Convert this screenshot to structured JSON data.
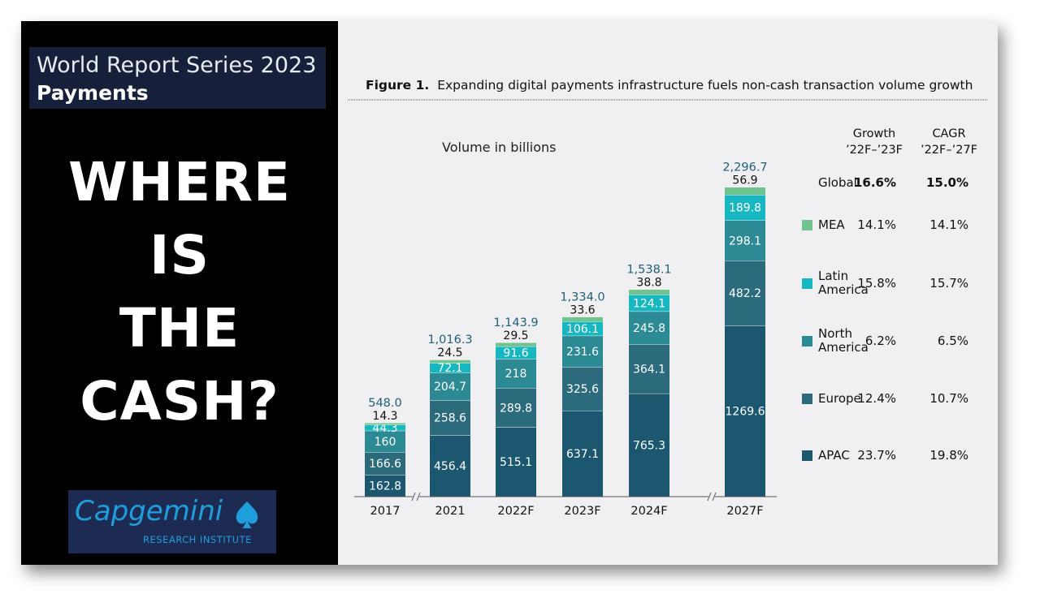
{
  "left_panel": {
    "series_title": "World Report Series 2023",
    "series_subtitle": "Payments",
    "headline_lines": [
      "WHERE",
      "IS",
      "THE",
      "CASH?"
    ],
    "logo": {
      "wordmark": "Capgemini",
      "subtitle": "RESEARCH INSTITUTE",
      "brand_color": "#1e9fdc"
    }
  },
  "chart_data": {
    "type": "bar",
    "stacked": true,
    "title_prefix": "Figure 1.",
    "title": "Expanding digital payments infrastructure fuels non-cash transaction volume growth",
    "ylabel": "Volume in billions",
    "categories": [
      "2017",
      "2021",
      "2022F",
      "2023F",
      "2024F",
      "2027F"
    ],
    "axis_breaks_after": [
      "2017",
      "2024F"
    ],
    "series": [
      {
        "name": "APAC",
        "color": "#1c5770",
        "values": [
          162.8,
          456.4,
          515.1,
          637.1,
          765.3,
          1269.6
        ]
      },
      {
        "name": "Europe",
        "color": "#2c6b7c",
        "values": [
          166.6,
          258.6,
          289.8,
          325.6,
          364.1,
          482.2
        ]
      },
      {
        "name": "North America",
        "color": "#2c8a94",
        "values": [
          160,
          204.7,
          218,
          231.6,
          245.8,
          298.1
        ]
      },
      {
        "name": "Latin America",
        "color": "#16b7c1",
        "values": [
          44.3,
          72.1,
          91.6,
          106.1,
          124.1,
          189.8
        ]
      },
      {
        "name": "MEA",
        "color": "#6ec38f",
        "values": [
          14.3,
          24.5,
          29.5,
          33.6,
          38.8,
          56.9
        ]
      }
    ],
    "value_labels": [
      [
        "162.8",
        "456.4",
        "515.1",
        "637.1",
        "765.3",
        "1269.6"
      ],
      [
        "166.6",
        "258.6",
        "289.8",
        "325.6",
        "364.1",
        "482.2"
      ],
      [
        "160",
        "204.7",
        "218",
        "231.6",
        "245.8",
        "298.1"
      ],
      [
        "44.3",
        "72.1",
        "91.6",
        "106.1",
        "124.1",
        "189.8"
      ],
      [
        "14.3",
        "24.5",
        "29.5",
        "33.6",
        "38.8",
        "56.9"
      ]
    ],
    "totals": [
      548.0,
      1016.3,
      1143.9,
      1334.0,
      1538.1,
      2296.7
    ],
    "total_labels": [
      "548.0",
      "1,016.3",
      "1,143.9",
      "1,334.0",
      "1,538.1",
      "2,296.7"
    ],
    "ylim": [
      0,
      2400
    ],
    "grid": false,
    "legend_placement": "right",
    "total_label_color": "#1f5f7a",
    "growth_table": {
      "col_headers": [
        {
          "line1": "Growth",
          "line2": "’22F–’23F"
        },
        {
          "line1": "CAGR",
          "line2": "’22F–’27F"
        }
      ],
      "rows": [
        {
          "label_lines": [
            "Global"
          ],
          "swatch": "",
          "growth": "16.6%",
          "cagr": "15.0%",
          "bold": true
        },
        {
          "label_lines": [
            "MEA"
          ],
          "swatch": "#6ec38f",
          "growth": "14.1%",
          "cagr": "14.1%",
          "bold": false
        },
        {
          "label_lines": [
            "Latin",
            "America"
          ],
          "swatch": "#16b7c1",
          "growth": "15.8%",
          "cagr": "15.7%",
          "bold": false
        },
        {
          "label_lines": [
            "North",
            "America"
          ],
          "swatch": "#2c8a94",
          "growth": "6.2%",
          "cagr": "6.5%",
          "bold": false
        },
        {
          "label_lines": [
            "Europe"
          ],
          "swatch": "#2c6b7c",
          "growth": "12.4%",
          "cagr": "10.7%",
          "bold": false
        },
        {
          "label_lines": [
            "APAC"
          ],
          "swatch": "#1c5770",
          "growth": "23.7%",
          "cagr": "19.8%",
          "bold": false
        }
      ]
    }
  }
}
